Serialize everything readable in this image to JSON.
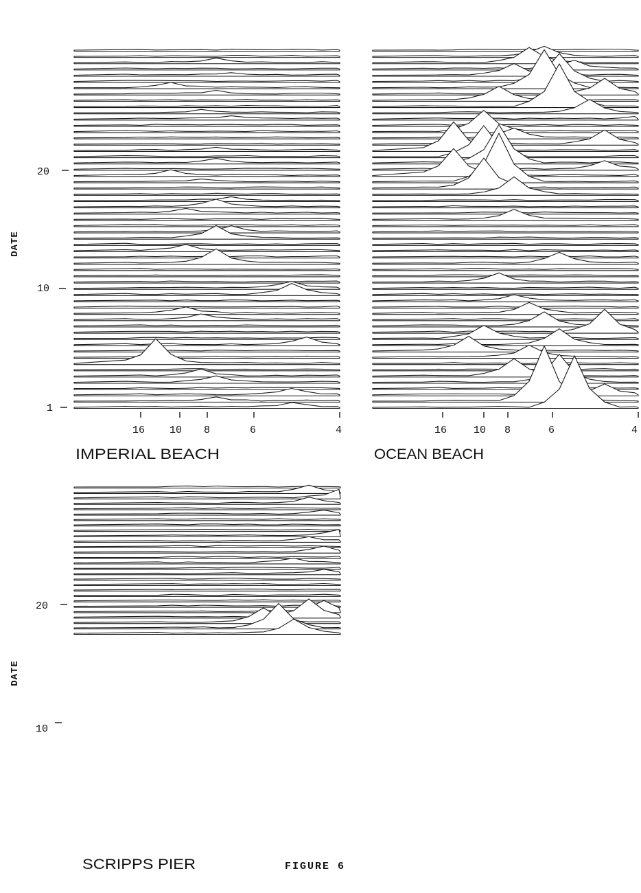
{
  "figure_label": "FIGURE 6",
  "chart_data": [
    {
      "type": "waterfall",
      "title": "IMPERIAL BEACH",
      "ylabel": "DATE",
      "y_ticks": [
        {
          "label": "20",
          "value": 20
        },
        {
          "label": "10",
          "value": 10
        },
        {
          "label": "1",
          "value": 1
        }
      ],
      "x_ticks": [
        "16",
        "10",
        "8",
        "6",
        "4"
      ],
      "traces": 58,
      "peaks": [
        {
          "trace": 2,
          "x": 13,
          "h": 6
        },
        {
          "trace": 4,
          "x": 12,
          "h": 3
        },
        {
          "trace": 6,
          "x": 16,
          "h": 7
        },
        {
          "trace": 7,
          "x": 13,
          "h": 4
        },
        {
          "trace": 10,
          "x": 14,
          "h": 4
        },
        {
          "trace": 11,
          "x": 12,
          "h": 4
        },
        {
          "trace": 16,
          "x": 13,
          "h": 4
        },
        {
          "trace": 18,
          "x": 13,
          "h": 5
        },
        {
          "trace": 20,
          "x": 16,
          "h": 8
        },
        {
          "trace": 21,
          "x": 14,
          "h": 3
        },
        {
          "trace": 24,
          "x": 12,
          "h": 5
        },
        {
          "trace": 25,
          "x": 13,
          "h": 10
        },
        {
          "trace": 26,
          "x": 15,
          "h": 6
        },
        {
          "trace": 29,
          "x": 12,
          "h": 8
        },
        {
          "trace": 30,
          "x": 13,
          "h": 18
        },
        {
          "trace": 32,
          "x": 15,
          "h": 8
        },
        {
          "trace": 34,
          "x": 13,
          "h": 20
        },
        {
          "trace": 38,
          "x": 8,
          "h": 10
        },
        {
          "trace": 39,
          "x": 8,
          "h": 16
        },
        {
          "trace": 42,
          "x": 15,
          "h": 9
        },
        {
          "trace": 43,
          "x": 14,
          "h": 7
        },
        {
          "trace": 47,
          "x": 7,
          "h": 10
        },
        {
          "trace": 50,
          "x": 17,
          "h": 35
        },
        {
          "trace": 52,
          "x": 14,
          "h": 9
        },
        {
          "trace": 53,
          "x": 13,
          "h": 8
        },
        {
          "trace": 55,
          "x": 8,
          "h": 9
        },
        {
          "trace": 56,
          "x": 13,
          "h": 5
        },
        {
          "trace": 57,
          "x": 8,
          "h": 7
        }
      ]
    },
    {
      "type": "waterfall",
      "title": "OCEAN BEACH",
      "ylabel": "",
      "y_ticks": [],
      "x_ticks": [
        "16",
        "10",
        "8",
        "6",
        "4"
      ],
      "traces": 58,
      "peaks": [
        {
          "trace": 1,
          "x": 11,
          "h": 14
        },
        {
          "trace": 2,
          "x": 12,
          "h": 22
        },
        {
          "trace": 3,
          "x": 9,
          "h": 12
        },
        {
          "trace": 4,
          "x": 13,
          "h": 16
        },
        {
          "trace": 5,
          "x": 10,
          "h": 40
        },
        {
          "trace": 6,
          "x": 11,
          "h": 55
        },
        {
          "trace": 7,
          "x": 7,
          "h": 22
        },
        {
          "trace": 8,
          "x": 14,
          "h": 20
        },
        {
          "trace": 9,
          "x": 10,
          "h": 62
        },
        {
          "trace": 10,
          "x": 8,
          "h": 18
        },
        {
          "trace": 11,
          "x": 4,
          "h": 8
        },
        {
          "trace": 13,
          "x": 15,
          "h": 30
        },
        {
          "trace": 14,
          "x": 13,
          "h": 14
        },
        {
          "trace": 15,
          "x": 7,
          "h": 20
        },
        {
          "trace": 16,
          "x": 17,
          "h": 40
        },
        {
          "trace": 17,
          "x": 15,
          "h": 45
        },
        {
          "trace": 18,
          "x": 14,
          "h": 55
        },
        {
          "trace": 19,
          "x": 7,
          "h": 12
        },
        {
          "trace": 20,
          "x": 17,
          "h": 38
        },
        {
          "trace": 21,
          "x": 14,
          "h": 70
        },
        {
          "trace": 22,
          "x": 15,
          "h": 42
        },
        {
          "trace": 23,
          "x": 13,
          "h": 25
        },
        {
          "trace": 27,
          "x": 13,
          "h": 14
        },
        {
          "trace": 34,
          "x": 10,
          "h": 15
        },
        {
          "trace": 37,
          "x": 14,
          "h": 12
        },
        {
          "trace": 40,
          "x": 13,
          "h": 8
        },
        {
          "trace": 42,
          "x": 12,
          "h": 15
        },
        {
          "trace": 44,
          "x": 11,
          "h": 20
        },
        {
          "trace": 45,
          "x": 7,
          "h": 32
        },
        {
          "trace": 46,
          "x": 15,
          "h": 18
        },
        {
          "trace": 47,
          "x": 10,
          "h": 22
        },
        {
          "trace": 48,
          "x": 16,
          "h": 20
        },
        {
          "trace": 49,
          "x": 12,
          "h": 16
        },
        {
          "trace": 52,
          "x": 13,
          "h": 25
        },
        {
          "trace": 53,
          "x": 10,
          "h": 40
        },
        {
          "trace": 55,
          "x": 7,
          "h": 15
        },
        {
          "trace": 56,
          "x": 11,
          "h": 80
        },
        {
          "trace": 57,
          "x": 9,
          "h": 75
        }
      ]
    },
    {
      "type": "waterfall",
      "title": "SCRIPPS PIER",
      "ylabel": "DATE",
      "y_ticks": [
        {
          "label": "20",
          "value": 20
        },
        {
          "label": "10",
          "value": 10
        }
      ],
      "x_ticks": [],
      "traces": 28,
      "peaks": [
        {
          "trace": 1,
          "x": 9,
          "h": 10
        },
        {
          "trace": 2,
          "x": 7,
          "h": 12
        },
        {
          "trace": 3,
          "x": 9,
          "h": 8
        },
        {
          "trace": 5,
          "x": 8,
          "h": 5
        },
        {
          "trace": 9,
          "x": 7,
          "h": 8
        },
        {
          "trace": 10,
          "x": 9,
          "h": 6
        },
        {
          "trace": 12,
          "x": 8,
          "h": 7
        },
        {
          "trace": 14,
          "x": 10,
          "h": 6
        },
        {
          "trace": 16,
          "x": 8,
          "h": 5
        },
        {
          "trace": 23,
          "x": 8,
          "h": 15
        },
        {
          "trace": 24,
          "x": 9,
          "h": 25
        },
        {
          "trace": 25,
          "x": 12,
          "h": 20
        },
        {
          "trace": 26,
          "x": 11,
          "h": 35
        },
        {
          "trace": 27,
          "x": 10,
          "h": 20
        }
      ]
    }
  ]
}
